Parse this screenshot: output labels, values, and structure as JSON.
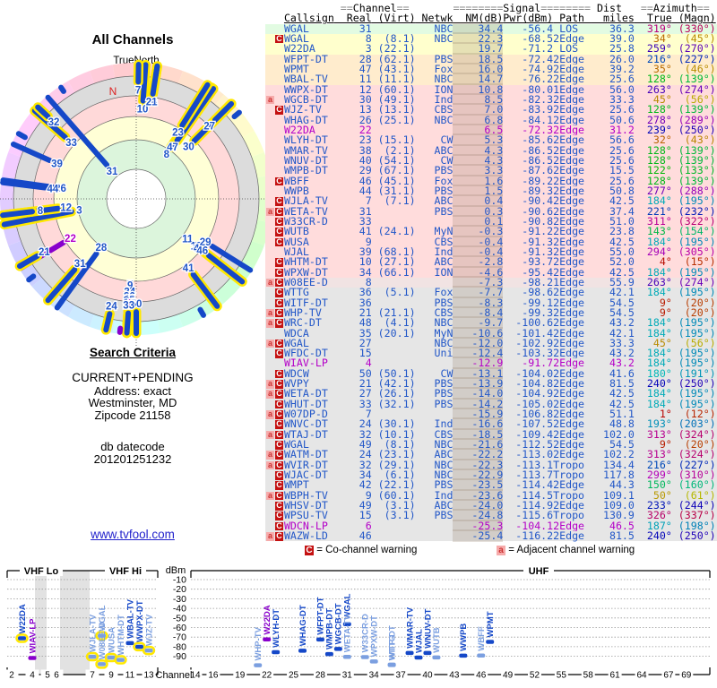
{
  "page": {
    "title": "All Channels"
  },
  "radar": {
    "north_label": "TrueNorth",
    "n_marker": "N"
  },
  "search": {
    "heading": "Search Criteria",
    "lines": [
      "CURRENT+PENDING",
      "Address: exact",
      "Westminster, MD",
      "Zipcode 21158"
    ],
    "db_label": "db datecode",
    "db_code": "201201251232"
  },
  "link": {
    "label": "www.tvfool.com"
  },
  "legend": {
    "c_symbol": "C",
    "c_text": "= Co-channel warning",
    "a_symbol": "a",
    "a_text": "= Adjacent channel warning"
  },
  "table_header": {
    "channel": "Channel",
    "signal": "Signal",
    "dist": "Dist",
    "azimuth": "Azimuth",
    "callsign": "Callsign",
    "real": "Real",
    "virt": "(Virt)",
    "netwk": "Netwk",
    "nm": "NM(dB)",
    "pwr": "Pwr(dBm)",
    "path": "Path",
    "miles": "miles",
    "true": "True",
    "magn": "(Magn)"
  },
  "colors": {
    "row_blue": "#2257c8",
    "row_magenta": "#b400c8",
    "bar_dark": "#1548c8",
    "bar_light": "#7b9fe0",
    "bar_purple": "#8800cc",
    "highlight": "#ffe800",
    "band_green": "#e2fbe2",
    "band_yellow": "#ffffcd",
    "band_orange": "#ffeccd",
    "band_pink": "#ffdcdc",
    "band_fade": "#f1e3e3",
    "band_gray": "#e6e6e6"
  },
  "band_ranges": {
    "green": [
      0,
      0
    ],
    "yellow": [
      1,
      2
    ],
    "orange": [
      3,
      5
    ],
    "pink": [
      6,
      24
    ],
    "fade": [
      25,
      25
    ],
    "gray": [
      26,
      50
    ]
  },
  "chart_axes": {
    "dbm_label": "dBm",
    "channel_label": "Channel",
    "vhf_lo_label": "VHF Lo",
    "vhf_hi_label": "VHF Hi",
    "uhf_label": "UHF",
    "y_ticks": [
      -10,
      -20,
      -30,
      -40,
      -50,
      -60,
      -70,
      -80,
      -90
    ],
    "vhf_ticks": [
      2,
      4,
      5,
      6,
      7,
      9,
      11,
      13
    ],
    "uhf_ticks": [
      14,
      16,
      19,
      22,
      25,
      28,
      31,
      34,
      37,
      40,
      43,
      46,
      49,
      52,
      55,
      58,
      61,
      64,
      67,
      69
    ]
  },
  "chart_data": {
    "type": "composite",
    "radar": {
      "title": "All Channels",
      "orientation": "TrueNorth up",
      "radial": "signal strength NM(dB), stronger toward center"
    },
    "bar": {
      "x": "RF channel",
      "y": "Pwr(dBm)",
      "ylim": [
        0,
        -105
      ],
      "bands": [
        "VHF Lo 2-6",
        "VHF Hi 7-13",
        "UHF 14-69"
      ]
    },
    "stations": [
      {
        "f": "",
        "cs": "WGAL",
        "re": "31",
        "vi": "",
        "nw": "NBC",
        "nm": 34.4,
        "pw": -56.4,
        "pa": "LOS",
        "di": "36.3",
        "at": 319,
        "am": 330
      },
      {
        "f": "C",
        "cs": "WGAL",
        "re": "8",
        "vi": "(8.1)",
        "nw": "NBC",
        "nm": 22.3,
        "pw": -68.5,
        "pa": "2Edge",
        "di": "39.0",
        "at": 34,
        "am": 45,
        "hl": 1
      },
      {
        "f": "",
        "cs": "W22DA",
        "re": "3",
        "vi": "(22.1)",
        "nw": "",
        "nm": 19.7,
        "pw": -71.2,
        "pa": "LOS",
        "di": "25.8",
        "at": 259,
        "am": 270,
        "hl": 1
      },
      {
        "f": "",
        "cs": "WFPT-DT",
        "re": "28",
        "vi": "(62.1)",
        "nw": "PBS",
        "nm": 18.5,
        "pw": -72.4,
        "pa": "2Edge",
        "di": "26.0",
        "at": 216,
        "am": 227
      },
      {
        "f": "",
        "cs": "WPMT",
        "re": "47",
        "vi": "(43.1)",
        "nw": "Fox",
        "nm": 16.0,
        "pw": -74.9,
        "pa": "2Edge",
        "di": "39.2",
        "at": 35,
        "am": 46,
        "hl": 1
      },
      {
        "f": "",
        "cs": "WBAL-TV",
        "re": "11",
        "vi": "(11.1)",
        "nw": "NBC",
        "nm": 14.7,
        "pw": -76.2,
        "pa": "2Edge",
        "di": "25.6",
        "at": 128,
        "am": 139
      },
      {
        "f": "",
        "cs": "WWPX-DT",
        "re": "12",
        "vi": "(60.1)",
        "nw": "ION",
        "nm": 10.8,
        "pw": -80.0,
        "pa": "1Edge",
        "di": "56.0",
        "at": 263,
        "am": 274,
        "hl": 1
      },
      {
        "f": "a",
        "cs": "WGCB-DT",
        "re": "30",
        "vi": "(49.1)",
        "nw": "Ind",
        "nm": 8.5,
        "pw": -82.3,
        "pa": "2Edge",
        "di": "33.3",
        "at": 45,
        "am": 56
      },
      {
        "f": "C",
        "cs": "WJZ-TV",
        "re": "13",
        "vi": "(13.1)",
        "nw": "CBS",
        "nm": 7.0,
        "pw": -83.9,
        "pa": "2Edge",
        "di": "25.6",
        "at": 128,
        "am": 139,
        "hl": 1
      },
      {
        "f": "",
        "cs": "WHAG-DT",
        "re": "26",
        "vi": "(25.1)",
        "nw": "NBC",
        "nm": 6.8,
        "pw": -84.1,
        "pa": "2Edge",
        "di": "50.6",
        "at": 278,
        "am": 289
      },
      {
        "f": "",
        "cs": "W22DA",
        "re": "22",
        "vi": "",
        "nw": "",
        "nm": 6.5,
        "pw": -72.3,
        "pa": "2Edge",
        "di": "31.2",
        "at": 239,
        "am": 250,
        "m": 1
      },
      {
        "f": "",
        "cs": "WLYH-DT",
        "re": "23",
        "vi": "(15.1)",
        "nw": "CW",
        "nm": 5.3,
        "pw": -85.6,
        "pa": "2Edge",
        "di": "56.6",
        "at": 32,
        "am": 43,
        "hl": 1
      },
      {
        "f": "",
        "cs": "WMAR-TV",
        "re": "38",
        "vi": "(2.1)",
        "nw": "ABC",
        "nm": 4.3,
        "pw": -86.5,
        "pa": "2Edge",
        "di": "25.6",
        "at": 128,
        "am": 139
      },
      {
        "f": "",
        "cs": "WNUV-DT",
        "re": "40",
        "vi": "(54.1)",
        "nw": "CW",
        "nm": 4.3,
        "pw": -86.5,
        "pa": "2Edge",
        "di": "25.6",
        "at": 128,
        "am": 139
      },
      {
        "f": "",
        "cs": "WMPB-DT",
        "re": "29",
        "vi": "(67.1)",
        "nw": "PBS",
        "nm": 3.3,
        "pw": -87.6,
        "pa": "2Edge",
        "di": "15.5",
        "at": 122,
        "am": 133
      },
      {
        "f": "C",
        "cs": "WBFF",
        "re": "46",
        "vi": "(45.1)",
        "nw": "Fox",
        "nm": 1.6,
        "pw": -89.2,
        "pa": "2Edge",
        "di": "25.6",
        "at": 128,
        "am": 139,
        "hl": 1
      },
      {
        "f": "",
        "cs": "WWPB",
        "re": "44",
        "vi": "(31.1)",
        "nw": "PBS",
        "nm": 1.5,
        "pw": -89.3,
        "pa": "2Edge",
        "di": "50.8",
        "at": 277,
        "am": 288
      },
      {
        "f": "C",
        "cs": "WJLA-TV",
        "re": "7",
        "vi": "(7.1)",
        "nw": "ABC",
        "nm": 0.4,
        "pw": -90.4,
        "pa": "2Edge",
        "di": "42.5",
        "at": 184,
        "am": 195,
        "hl": 1
      },
      {
        "f": "aC",
        "cs": "WETA-TV",
        "re": "31",
        "vi": "",
        "nw": "PBS",
        "nm": 0.3,
        "pw": -90.6,
        "pa": "2Edge",
        "di": "37.4",
        "at": 221,
        "am": 232,
        "hl": 1
      },
      {
        "f": "C",
        "cs": "W33CR-D",
        "re": "33",
        "vi": "",
        "nw": "",
        "nm": 0.1,
        "pw": -90.8,
        "pa": "2Edge",
        "di": "51.0",
        "at": 311,
        "am": 322,
        "hl": 1
      },
      {
        "f": "C",
        "cs": "WUTB",
        "re": "41",
        "vi": "(24.1)",
        "nw": "MyN",
        "nm": -0.3,
        "pw": -91.2,
        "pa": "2Edge",
        "di": "23.8",
        "at": 143,
        "am": 154,
        "hl": 1
      },
      {
        "f": "C",
        "cs": "WUSA",
        "re": "9",
        "vi": "",
        "nw": "CBS",
        "nm": -0.4,
        "pw": -91.3,
        "pa": "2Edge",
        "di": "42.5",
        "at": 184,
        "am": 195,
        "hl": 1
      },
      {
        "f": "",
        "cs": "WJAL",
        "re": "39",
        "vi": "(68.1)",
        "nw": "Ind",
        "nm": -0.4,
        "pw": -91.3,
        "pa": "2Edge",
        "di": "55.0",
        "at": 294,
        "am": 305
      },
      {
        "f": "C",
        "cs": "WHTM-DT",
        "re": "10",
        "vi": "(27.1)",
        "nw": "ABC",
        "nm": -2.8,
        "pw": -93.7,
        "pa": "2Edge",
        "di": "52.0",
        "at": 4,
        "am": 15,
        "hl": 1
      },
      {
        "f": "C",
        "cs": "WPXW-DT",
        "re": "34",
        "vi": "(66.1)",
        "nw": "ION",
        "nm": -4.6,
        "pw": -95.4,
        "pa": "2Edge",
        "di": "42.5",
        "at": 184,
        "am": 195,
        "hl": 1
      },
      {
        "f": "aC",
        "cs": "W08EE-D",
        "re": "8",
        "vi": "",
        "nw": "",
        "nm": -7.3,
        "pw": -98.2,
        "pa": "1Edge",
        "di": "55.9",
        "at": 263,
        "am": 274,
        "hl": 1
      },
      {
        "f": "C",
        "cs": "WTTG",
        "re": "36",
        "vi": "(5.1)",
        "nw": "Fox",
        "nm": -7.7,
        "pw": -98.6,
        "pa": "2Edge",
        "di": "42.1",
        "at": 184,
        "am": 195,
        "hl": 1
      },
      {
        "f": "C",
        "cs": "WITF-DT",
        "re": "36",
        "vi": "",
        "nw": "PBS",
        "nm": -8.3,
        "pw": -99.1,
        "pa": "2Edge",
        "di": "54.5",
        "at": 9,
        "am": 20,
        "hl": 1
      },
      {
        "f": "aC",
        "cs": "WHP-TV",
        "re": "21",
        "vi": "(21.1)",
        "nw": "CBS",
        "nm": -8.4,
        "pw": -99.3,
        "pa": "2Edge",
        "di": "54.5",
        "at": 9,
        "am": 20,
        "hl": 1
      },
      {
        "f": "aC",
        "cs": "WRC-DT",
        "re": "48",
        "vi": "(4.1)",
        "nw": "NBC",
        "nm": -9.7,
        "pw": -100.6,
        "pa": "2Edge",
        "di": "43.2",
        "at": 184,
        "am": 195,
        "hl": 1
      },
      {
        "f": "",
        "cs": "WDCA",
        "re": "35",
        "vi": "(20.1)",
        "nw": "MyN",
        "nm": -10.6,
        "pw": -101.4,
        "pa": "2Edge",
        "di": "42.1",
        "at": 184,
        "am": 195
      },
      {
        "f": "aC",
        "cs": "WGAL",
        "re": "27",
        "vi": "",
        "nw": "NBC",
        "nm": -12.0,
        "pw": -102.9,
        "pa": "2Edge",
        "di": "33.3",
        "at": 45,
        "am": 56,
        "hl": 1
      },
      {
        "f": "C",
        "cs": "WFDC-DT",
        "re": "15",
        "vi": "",
        "nw": "Uni",
        "nm": -12.4,
        "pw": -103.3,
        "pa": "2Edge",
        "di": "43.2",
        "at": 184,
        "am": 195,
        "hl": 1
      },
      {
        "f": "",
        "cs": "WIAV-LP",
        "re": "4",
        "vi": "",
        "nw": "",
        "nm": -12.9,
        "pw": -91.7,
        "pa": "2Edge",
        "di": "43.2",
        "at": 184,
        "am": 195,
        "m": 1
      },
      {
        "f": "C",
        "cs": "WDCW",
        "re": "50",
        "vi": "(50.1)",
        "nw": "CW",
        "nm": -13.1,
        "pw": -104.0,
        "pa": "2Edge",
        "di": "41.6",
        "at": 180,
        "am": 191,
        "hl": 1
      },
      {
        "f": "aC",
        "cs": "WVPY",
        "re": "21",
        "vi": "(42.1)",
        "nw": "PBS",
        "nm": -13.9,
        "pw": -104.8,
        "pa": "2Edge",
        "di": "81.5",
        "at": 240,
        "am": 250,
        "hl": 1
      },
      {
        "f": "aC",
        "cs": "WETA-DT",
        "re": "27",
        "vi": "(26.1)",
        "nw": "PBS",
        "nm": -14.0,
        "pw": -104.9,
        "pa": "2Edge",
        "di": "42.5",
        "at": 184,
        "am": 195,
        "hl": 1
      },
      {
        "f": "C",
        "cs": "WHUT-DT",
        "re": "33",
        "vi": "(32.1)",
        "nw": "PBS",
        "nm": -14.2,
        "pw": -105.0,
        "pa": "2Edge",
        "di": "42.5",
        "at": 184,
        "am": 195,
        "hl": 1
      },
      {
        "f": "aC",
        "cs": "W07DP-D",
        "re": "7",
        "vi": "",
        "nw": "",
        "nm": -15.9,
        "pw": -106.8,
        "pa": "2Edge",
        "di": "51.1",
        "at": 1,
        "am": 12,
        "hl": 1
      },
      {
        "f": "C",
        "cs": "WNVC-DT",
        "re": "24",
        "vi": "(30.1)",
        "nw": "Ind",
        "nm": -16.6,
        "pw": -107.5,
        "pa": "2Edge",
        "di": "48.8",
        "at": 193,
        "am": 203,
        "hl": 1
      },
      {
        "f": "aC",
        "cs": "WTAJ-DT",
        "re": "32",
        "vi": "(10.1)",
        "nw": "CBS",
        "nm": -18.5,
        "pw": -109.4,
        "pa": "2Edge",
        "di": "102.0",
        "at": 313,
        "am": 324,
        "hl": 1
      },
      {
        "f": "C",
        "cs": "WGAL",
        "re": "49",
        "vi": "(8.1)",
        "nw": "NBC",
        "nm": -21.6,
        "pw": -112.5,
        "pa": "2Edge",
        "di": "54.5",
        "at": 9,
        "am": 20
      },
      {
        "f": "aC",
        "cs": "WATM-DT",
        "re": "24",
        "vi": "(23.1)",
        "nw": "ABC",
        "nm": -22.2,
        "pw": -113.0,
        "pa": "2Edge",
        "di": "102.2",
        "at": 313,
        "am": 324
      },
      {
        "f": "aC",
        "cs": "WVIR-DT",
        "re": "32",
        "vi": "(29.1)",
        "nw": "NBC",
        "nm": -22.3,
        "pw": -113.1,
        "pa": "Tropo",
        "di": "134.4",
        "at": 216,
        "am": 227
      },
      {
        "f": "C",
        "cs": "WJAC-DT",
        "re": "34",
        "vi": "(6.1)",
        "nw": "NBC",
        "nm": -22.9,
        "pw": -113.7,
        "pa": "Tropo",
        "di": "117.8",
        "at": 299,
        "am": 310
      },
      {
        "f": "C",
        "cs": "WMPT",
        "re": "42",
        "vi": "(22.1)",
        "nw": "PBS",
        "nm": -23.5,
        "pw": -114.4,
        "pa": "2Edge",
        "di": "44.3",
        "at": 150,
        "am": 160
      },
      {
        "f": "aC",
        "cs": "WBPH-TV",
        "re": "9",
        "vi": "(60.1)",
        "nw": "Ind",
        "nm": -23.6,
        "pw": -114.5,
        "pa": "Tropo",
        "di": "109.1",
        "at": 50,
        "am": 61
      },
      {
        "f": "C",
        "cs": "WHSV-DT",
        "re": "49",
        "vi": "(3.1)",
        "nw": "ABC",
        "nm": -24.0,
        "pw": -114.9,
        "pa": "2Edge",
        "di": "109.0",
        "at": 233,
        "am": 244
      },
      {
        "f": "C",
        "cs": "WPSU-TV",
        "re": "15",
        "vi": "(3.1)",
        "nw": "PBS",
        "nm": -24.8,
        "pw": -115.6,
        "pa": "Tropo",
        "di": "130.9",
        "at": 326,
        "am": 337
      },
      {
        "f": "C",
        "cs": "WDCN-LP",
        "re": "6",
        "vi": "",
        "nw": "",
        "nm": -25.3,
        "pw": -104.1,
        "pa": "2Edge",
        "di": "46.5",
        "at": 187,
        "am": 198,
        "m": 1
      },
      {
        "f": "aC",
        "cs": "WAZW-LD",
        "re": "46",
        "vi": "",
        "nw": "",
        "nm": -25.4,
        "pw": -116.2,
        "pa": "2Edge",
        "di": "81.5",
        "at": 240,
        "am": 250
      }
    ]
  }
}
